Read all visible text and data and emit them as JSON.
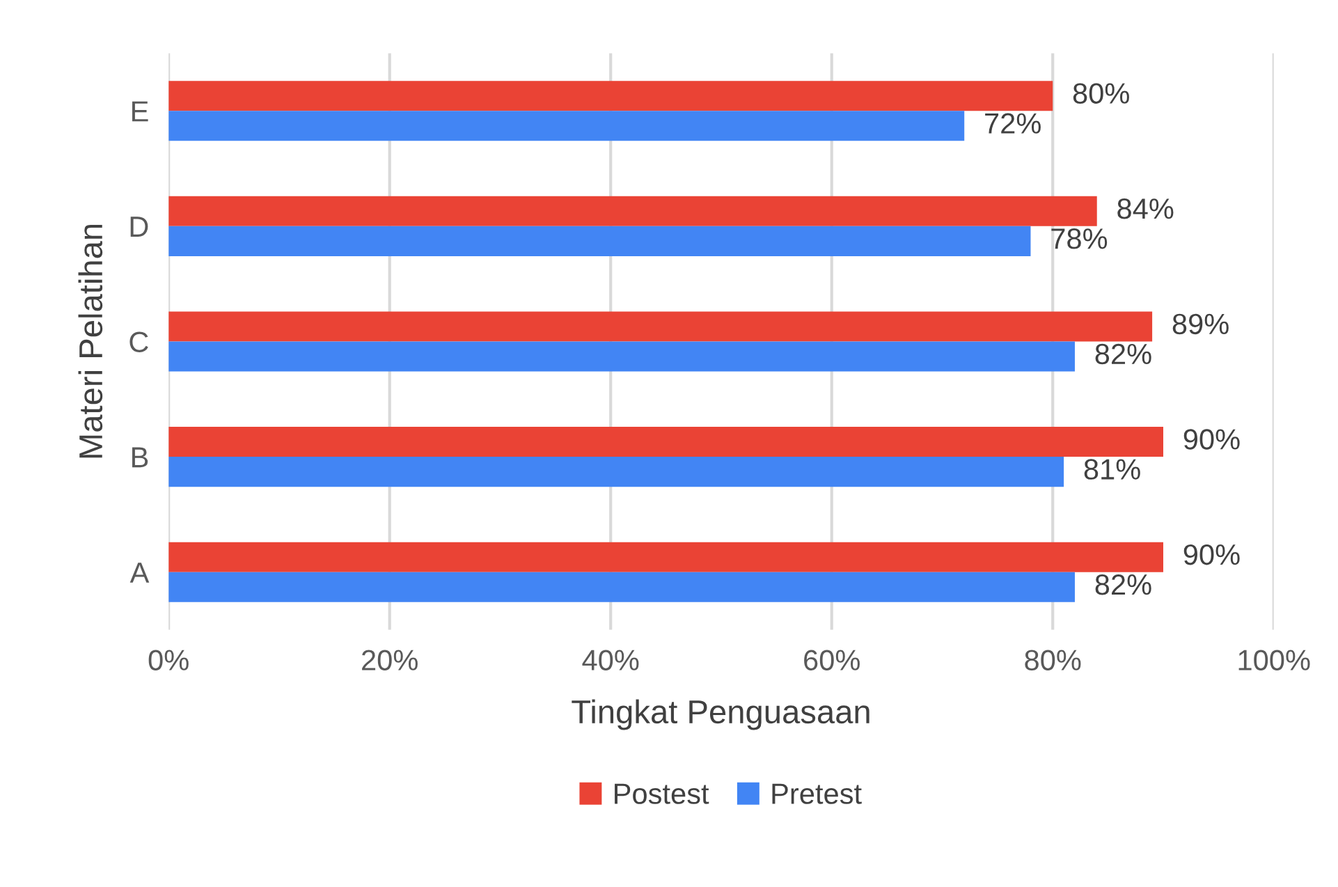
{
  "chart_data": {
    "type": "bar",
    "orientation": "horizontal",
    "xlabel": "Tingkat Penguasaan",
    "ylabel": "Materi Pelatihan",
    "categories": [
      "E",
      "D",
      "C",
      "B",
      "A"
    ],
    "series": [
      {
        "name": "Postest",
        "color": "#ea4335",
        "values": [
          80,
          84,
          89,
          90,
          90
        ],
        "value_labels": [
          "80%",
          "84%",
          "89%",
          "90%",
          "90%"
        ]
      },
      {
        "name": "Pretest",
        "color": "#4285f4",
        "values": [
          72,
          78,
          82,
          81,
          82
        ],
        "value_labels": [
          "72%",
          "78%",
          "82%",
          "81%",
          "82%"
        ]
      }
    ],
    "xlim": [
      0,
      100
    ],
    "xticks": [
      {
        "value": 0,
        "label": "0%"
      },
      {
        "value": 20,
        "label": "20%"
      },
      {
        "value": 40,
        "label": "40%"
      },
      {
        "value": 60,
        "label": "60%"
      },
      {
        "value": 80,
        "label": "80%"
      },
      {
        "value": 100,
        "label": "100%"
      }
    ],
    "grid": "x",
    "legend": "bottom"
  }
}
